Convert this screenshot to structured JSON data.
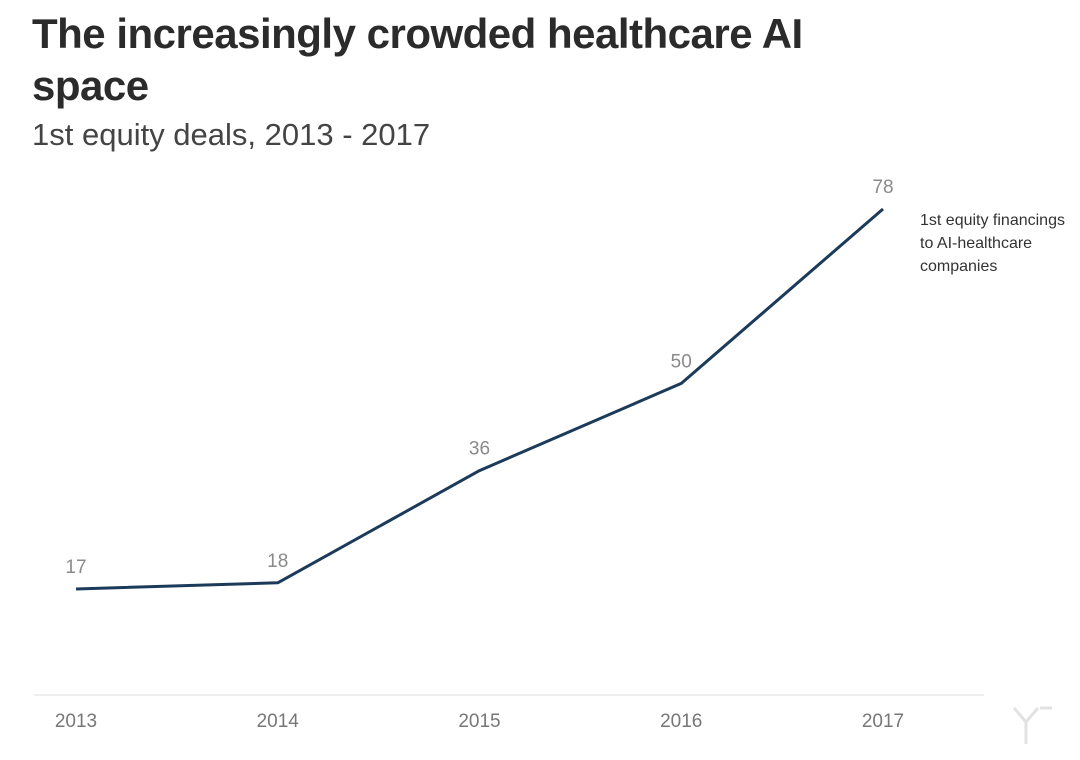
{
  "chart_data": {
    "type": "line",
    "title": "The increasingly crowded healthcare AI space",
    "subtitle": "1st equity deals, 2013 - 2017",
    "categories": [
      "2013",
      "2014",
      "2015",
      "2016",
      "2017"
    ],
    "series": [
      {
        "name": "1st equity financings to AI-healthcare companies",
        "values": [
          17,
          18,
          36,
          50,
          78
        ],
        "color": "#1c3a5a"
      }
    ],
    "ylim": [
      0,
      100
    ],
    "grid": false,
    "data_labels": true,
    "legend_placement": "end-of-line label, top-right"
  },
  "annotation_lines": [
    "1st equity financings",
    "to  AI-healthcare",
    "companies"
  ],
  "colors": {
    "line": "#1c3a5a",
    "baseline": "#dddddd",
    "tick_label": "#777777",
    "data_label": "#8a8a8a"
  }
}
